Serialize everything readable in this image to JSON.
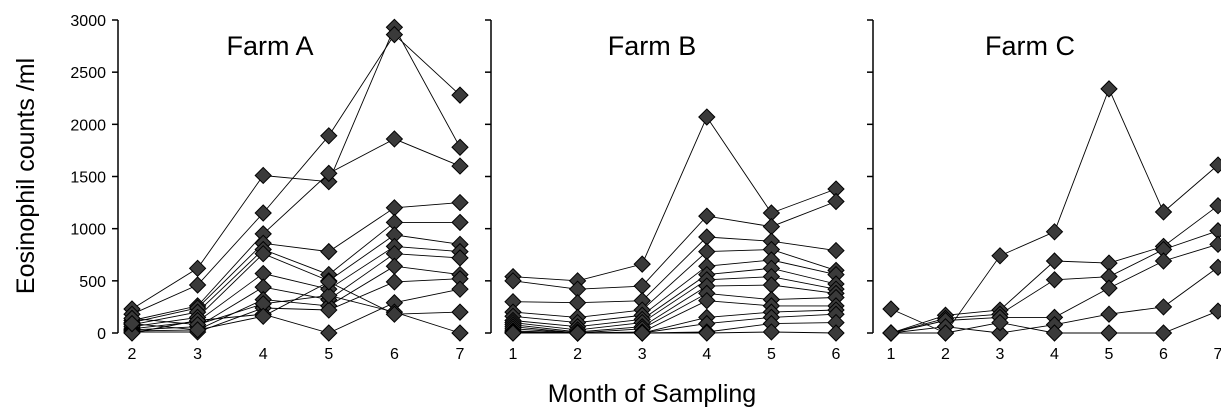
{
  "chart_data": {
    "type": "line",
    "ylabel": "Eosinophil counts /ml",
    "xlabel": "Month of Sampling",
    "ylim": [
      0,
      3000
    ],
    "yticks": [
      0,
      500,
      1000,
      1500,
      2000,
      2500,
      3000
    ],
    "marker": "diamond",
    "marker_color": "#3a3a3a",
    "line_color": "#000000",
    "panels": [
      {
        "title": "Farm A",
        "x": [
          2,
          3,
          4,
          5,
          6,
          7
        ],
        "series": [
          {
            "values": [
              230,
              620,
              1510,
              1450,
              2930,
              1780
            ]
          },
          {
            "values": [
              180,
              460,
              1150,
              1890,
              2860,
              2280
            ]
          },
          {
            "values": [
              120,
              260,
              950,
              1530,
              1860,
              1600
            ]
          },
          {
            "values": [
              100,
              240,
              860,
              780,
              1200,
              1250
            ]
          },
          {
            "values": [
              80,
              200,
              800,
              560,
              1060,
              1060
            ]
          },
          {
            "values": [
              60,
              150,
              760,
              500,
              940,
              850
            ]
          },
          {
            "values": [
              40,
              110,
              570,
              420,
              830,
              780
            ]
          },
          {
            "values": [
              30,
              60,
              440,
              320,
              760,
              720
            ]
          },
          {
            "values": [
              20,
              30,
              320,
              260,
              640,
              560
            ]
          },
          {
            "values": [
              10,
              10,
              240,
              220,
              490,
              520
            ]
          },
          {
            "values": [
              0,
              120,
              180,
              0,
              290,
              420
            ]
          },
          {
            "values": [
              140,
              80,
              280,
              360,
              200,
              0
            ]
          },
          {
            "values": [
              90,
              30,
              160,
              490,
              180,
              200
            ]
          }
        ]
      },
      {
        "title": "Farm B",
        "x": [
          1,
          2,
          3,
          4,
          5,
          6
        ],
        "series": [
          {
            "values": [
              540,
              500,
              660,
              2070,
              1150,
              1380
            ]
          },
          {
            "values": [
              500,
              420,
              450,
              1120,
              1020,
              1260
            ]
          },
          {
            "values": [
              300,
              290,
              310,
              920,
              880,
              790
            ]
          },
          {
            "values": [
              200,
              150,
              220,
              780,
              800,
              600
            ]
          },
          {
            "values": [
              160,
              100,
              170,
              640,
              700,
              560
            ]
          },
          {
            "values": [
              120,
              60,
              130,
              560,
              620,
              470
            ]
          },
          {
            "values": [
              100,
              30,
              100,
              510,
              540,
              420
            ]
          },
          {
            "values": [
              80,
              10,
              60,
              450,
              460,
              380
            ]
          },
          {
            "values": [
              60,
              0,
              40,
              380,
              320,
              340
            ]
          },
          {
            "values": [
              40,
              0,
              10,
              310,
              260,
              260
            ]
          },
          {
            "values": [
              20,
              0,
              0,
              150,
              200,
              220
            ]
          },
          {
            "values": [
              10,
              0,
              0,
              90,
              150,
              180
            ]
          },
          {
            "values": [
              0,
              0,
              0,
              10,
              90,
              100
            ]
          },
          {
            "values": [
              0,
              0,
              0,
              0,
              10,
              0
            ]
          }
        ]
      },
      {
        "title": "Farm C",
        "x": [
          1,
          2,
          3,
          4,
          5,
          6,
          7
        ],
        "series": [
          {
            "values": [
              230,
              0,
              740,
              970,
              2340,
              1160,
              1610
            ]
          },
          {
            "values": [
              0,
              170,
              220,
              690,
              670,
              830,
              1220
            ]
          },
          {
            "values": [
              0,
              140,
              180,
              510,
              540,
              800,
              980
            ]
          },
          {
            "values": [
              0,
              120,
              150,
              150,
              430,
              690,
              850
            ]
          },
          {
            "values": [
              0,
              60,
              0,
              80,
              180,
              250,
              630
            ]
          },
          {
            "values": [
              0,
              0,
              100,
              0,
              0,
              0,
              210
            ]
          }
        ]
      }
    ]
  }
}
